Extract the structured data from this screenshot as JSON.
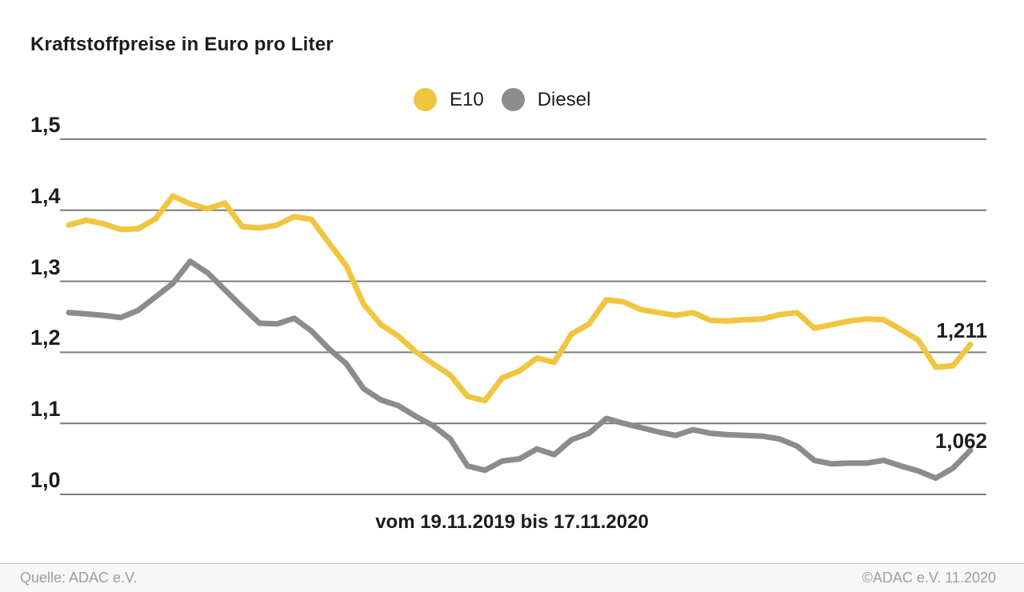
{
  "title": "Kraftstoffpreise in Euro pro Liter",
  "x_axis_label": "vom 19.11.2019 bis 17.11.2020",
  "footer": {
    "source": "Quelle: ADAC e.V.",
    "copyright": "©ADAC e.V. 11.2020"
  },
  "chart_data": {
    "type": "line",
    "title": "Kraftstoffpreise in Euro pro Liter",
    "x_start_date": "19.11.2019",
    "x_end_date": "17.11.2020",
    "x_interval": "weekly",
    "ylabel": "Euro pro Liter",
    "ylim": [
      0.97,
      1.52
    ],
    "grid": true,
    "legend_position": "top-center",
    "gridline_color": "#7c7c7c",
    "y_ticks": [
      {
        "label": "1,5",
        "value": 1.5
      },
      {
        "label": "1,4",
        "value": 1.4
      },
      {
        "label": "1,3",
        "value": 1.3
      },
      {
        "label": "1,2",
        "value": 1.2
      },
      {
        "label": "1,1",
        "value": 1.1
      },
      {
        "label": "1,0",
        "value": 1.0
      }
    ],
    "series": [
      {
        "name": "E10",
        "color": "#F0C640",
        "final_label": "1,211",
        "final_value": 1.211,
        "values": [
          1.379,
          1.386,
          1.381,
          1.373,
          1.374,
          1.388,
          1.42,
          1.409,
          1.402,
          1.41,
          1.377,
          1.375,
          1.379,
          1.391,
          1.387,
          1.354,
          1.322,
          1.268,
          1.239,
          1.223,
          1.201,
          1.184,
          1.168,
          1.138,
          1.132,
          1.164,
          1.174,
          1.192,
          1.186,
          1.226,
          1.24,
          1.274,
          1.271,
          1.26,
          1.256,
          1.252,
          1.256,
          1.245,
          1.244,
          1.246,
          1.247,
          1.253,
          1.256,
          1.234,
          1.239,
          1.244,
          1.247,
          1.246,
          1.232,
          1.217,
          1.179,
          1.181,
          1.211
        ]
      },
      {
        "name": "Diesel",
        "color": "#8C8C8C",
        "final_label": "1,062",
        "final_value": 1.062,
        "values": [
          1.256,
          1.254,
          1.252,
          1.249,
          1.259,
          1.278,
          1.297,
          1.328,
          1.312,
          1.288,
          1.264,
          1.241,
          1.24,
          1.248,
          1.23,
          1.205,
          1.184,
          1.149,
          1.133,
          1.125,
          1.11,
          1.097,
          1.078,
          1.04,
          1.034,
          1.047,
          1.05,
          1.064,
          1.056,
          1.077,
          1.086,
          1.107,
          1.1,
          1.094,
          1.088,
          1.083,
          1.091,
          1.086,
          1.084,
          1.083,
          1.082,
          1.078,
          1.068,
          1.048,
          1.043,
          1.044,
          1.044,
          1.048,
          1.04,
          1.033,
          1.023,
          1.037,
          1.062
        ]
      }
    ]
  }
}
